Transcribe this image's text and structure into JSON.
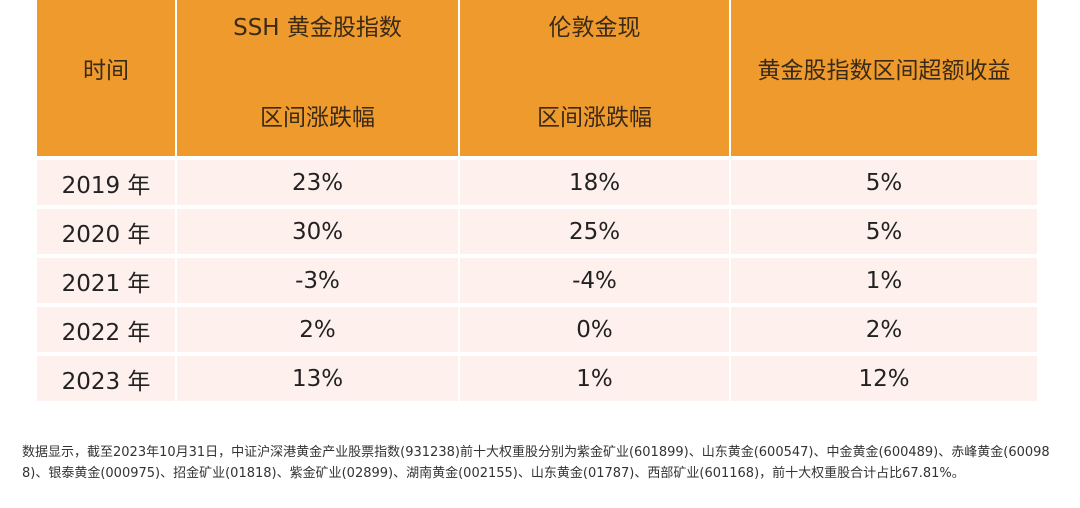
{
  "table": {
    "headers": [
      {
        "line1": "时间",
        "line2": ""
      },
      {
        "line1": "SSH 黄金股指数",
        "line2": "区间涨跌幅"
      },
      {
        "line1": "伦敦金现",
        "line2": "区间涨跌幅"
      },
      {
        "line1": "黄金股指数区间超额收益",
        "line2": ""
      }
    ],
    "rows": [
      [
        "2019 年",
        "23%",
        "18%",
        "5%"
      ],
      [
        "2020 年",
        "30%",
        "25%",
        "5%"
      ],
      [
        "2021 年",
        "-3%",
        "-4%",
        "1%"
      ],
      [
        "2022 年",
        "2%",
        "0%",
        "2%"
      ],
      [
        "2023 年",
        "13%",
        "1%",
        "12%"
      ]
    ]
  },
  "footnote": "数据显示，截至2023年10月31日，中证沪深港黄金产业股票指数(931238)前十大权重股分别为紫金矿业(601899)、山东黄金(600547)、中金黄金(600489)、赤峰黄金(600988)、银泰黄金(000975)、招金矿业(01818)、紫金矿业(02899)、湖南黄金(002155)、山东黄金(01787)、西部矿业(601168)，前十大权重股合计占比67.81%。",
  "colors": {
    "header_bg": "#ef9a2d",
    "row_bg": "#fdf0ed"
  }
}
